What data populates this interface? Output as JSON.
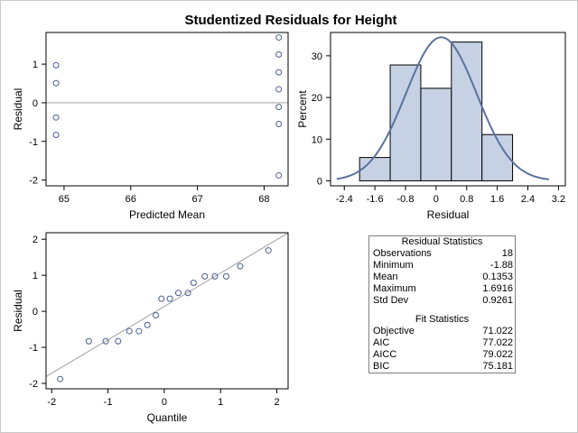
{
  "title": "Studentized Residuals for Height",
  "colors": {
    "marker": "#4a5e96",
    "fill": "#c6d1e4",
    "line": "#5a72a0",
    "ref": "#a0a0a0"
  },
  "chart_data": [
    {
      "type": "scatter",
      "xlabel": "Predicted Mean",
      "ylabel": "Residual",
      "xlim": [
        64.73,
        68.36
      ],
      "ylim": [
        -2.15,
        1.82
      ],
      "xticks": [
        "65",
        "66",
        "67",
        "68"
      ],
      "yticks": [
        "-2",
        "-1",
        "0",
        "1"
      ],
      "reference_y": 0,
      "points": [
        {
          "x": 64.88,
          "y": 0.97
        },
        {
          "x": 64.88,
          "y": 0.51
        },
        {
          "x": 64.88,
          "y": -0.38
        },
        {
          "x": 64.88,
          "y": -0.83
        },
        {
          "x": 68.22,
          "y": 1.69
        },
        {
          "x": 68.22,
          "y": 1.25
        },
        {
          "x": 68.22,
          "y": 0.79
        },
        {
          "x": 68.22,
          "y": 0.35
        },
        {
          "x": 68.22,
          "y": -0.11
        },
        {
          "x": 68.22,
          "y": -0.55
        },
        {
          "x": 68.22,
          "y": -1.88
        }
      ]
    },
    {
      "type": "bar",
      "xlabel": "Residual",
      "ylabel": "Percent",
      "xlim": [
        -2.76,
        3.38
      ],
      "ylim": [
        -1.2,
        35.6
      ],
      "xticks": [
        "-2.4",
        "-1.6",
        "-0.8",
        "0",
        "0.8",
        "1.6",
        "2.4",
        "3.2"
      ],
      "yticks": [
        "0",
        "10",
        "20",
        "30"
      ],
      "bin_edges": [
        -2.0,
        -1.2,
        -0.4,
        0.4,
        1.2,
        2.0
      ],
      "values": [
        5.6,
        27.8,
        22.2,
        33.3,
        11.1
      ],
      "normal_curve": {
        "mean": 0.1353,
        "sd": 0.9261,
        "bin_width": 0.8,
        "x_range": [
          -2.6,
          2.95
        ]
      }
    },
    {
      "type": "scatter",
      "xlabel": "Quantile",
      "ylabel": "Residual",
      "xlim": [
        -2.1,
        2.2
      ],
      "ylim": [
        -2.15,
        2.18
      ],
      "xticks": [
        "-2",
        "-1",
        "0",
        "1",
        "2"
      ],
      "yticks": [
        "-2",
        "-1",
        "0",
        "1",
        "2"
      ],
      "reference_line": {
        "intercept": 0.1353,
        "slope": 0.9261
      },
      "points": [
        {
          "x": -1.85,
          "y": -1.88
        },
        {
          "x": -1.34,
          "y": -0.83
        },
        {
          "x": -1.04,
          "y": -0.83
        },
        {
          "x": -0.82,
          "y": -0.83
        },
        {
          "x": -0.62,
          "y": -0.55
        },
        {
          "x": -0.45,
          "y": -0.55
        },
        {
          "x": -0.3,
          "y": -0.38
        },
        {
          "x": -0.15,
          "y": -0.11
        },
        {
          "x": -0.05,
          "y": 0.35
        },
        {
          "x": 0.1,
          "y": 0.35
        },
        {
          "x": 0.25,
          "y": 0.51
        },
        {
          "x": 0.42,
          "y": 0.51
        },
        {
          "x": 0.52,
          "y": 0.79
        },
        {
          "x": 0.72,
          "y": 0.97
        },
        {
          "x": 0.9,
          "y": 0.97
        },
        {
          "x": 1.1,
          "y": 0.97
        },
        {
          "x": 1.35,
          "y": 1.25
        },
        {
          "x": 1.85,
          "y": 1.69
        }
      ]
    }
  ],
  "residual_statistics": {
    "header": "Residual Statistics",
    "rows": [
      {
        "label": "Observations",
        "value": "18"
      },
      {
        "label": "Minimum",
        "value": "-1.88"
      },
      {
        "label": "Mean",
        "value": "0.1353"
      },
      {
        "label": "Maximum",
        "value": "1.6916"
      },
      {
        "label": "Std Dev",
        "value": "0.9261"
      }
    ]
  },
  "fit_statistics": {
    "header": "Fit Statistics",
    "rows": [
      {
        "label": "Objective",
        "value": "71.022"
      },
      {
        "label": "AIC",
        "value": "77.022"
      },
      {
        "label": "AICC",
        "value": "79.022"
      },
      {
        "label": "BIC",
        "value": "75.181"
      }
    ]
  }
}
